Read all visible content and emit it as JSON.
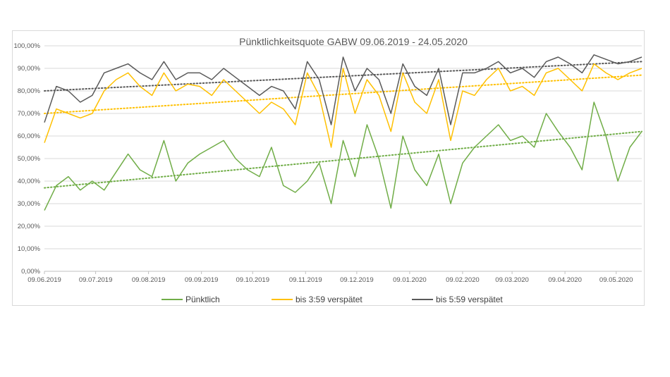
{
  "chart_data": {
    "type": "line",
    "title": "Pünktlichkeitsquote GABW 09.06.2019 - 24.05.2020",
    "xlabel": "",
    "ylabel": "",
    "ylim": [
      0,
      100
    ],
    "y_ticks": [
      "0,00%",
      "10,00%",
      "20,00%",
      "30,00%",
      "40,00%",
      "50,00%",
      "60,00%",
      "70,00%",
      "80,00%",
      "90,00%",
      "100,00%"
    ],
    "x_tick_labels": [
      "09.06.2019",
      "09.07.2019",
      "09.08.2019",
      "09.09.2019",
      "09.10.2019",
      "09.11.2019",
      "09.12.2019",
      "09.01.2020",
      "09.02.2020",
      "09.03.2020",
      "09.04.2020",
      "09.05.2020"
    ],
    "x_tick_days": [
      0,
      30,
      61,
      92,
      122,
      153,
      183,
      214,
      245,
      274,
      305,
      335
    ],
    "x_range_days": [
      0,
      350
    ],
    "grid": true,
    "legend_position": "bottom",
    "series": [
      {
        "name": "Pünktlich",
        "color": "#70ad47",
        "day_step": 7,
        "values": [
          27,
          38,
          42,
          36,
          40,
          36,
          44,
          52,
          45,
          42,
          58,
          40,
          48,
          52,
          55,
          58,
          50,
          45,
          42,
          55,
          38,
          35,
          40,
          48,
          30,
          58,
          42,
          65,
          50,
          28,
          60,
          45,
          38,
          52,
          30,
          48,
          55,
          60,
          65,
          58,
          60,
          55,
          70,
          62,
          55,
          45,
          75,
          60,
          40,
          55,
          62
        ]
      },
      {
        "name": "bis 3:59 verspätet",
        "color": "#ffc000",
        "day_step": 7,
        "values": [
          57,
          72,
          70,
          68,
          70,
          80,
          85,
          88,
          82,
          78,
          88,
          80,
          83,
          82,
          78,
          85,
          80,
          75,
          70,
          75,
          72,
          65,
          88,
          78,
          55,
          90,
          70,
          85,
          78,
          62,
          88,
          75,
          70,
          85,
          58,
          80,
          78,
          85,
          90,
          80,
          82,
          78,
          88,
          90,
          85,
          80,
          92,
          88,
          85,
          88,
          90
        ]
      },
      {
        "name": "bis 5:59 verspätet",
        "color": "#595959",
        "day_step": 7,
        "values": [
          66,
          82,
          80,
          75,
          78,
          88,
          90,
          92,
          88,
          85,
          93,
          85,
          88,
          88,
          85,
          90,
          86,
          82,
          78,
          82,
          80,
          72,
          93,
          85,
          65,
          95,
          80,
          90,
          85,
          70,
          92,
          82,
          78,
          90,
          65,
          88,
          88,
          90,
          93,
          88,
          90,
          86,
          93,
          95,
          92,
          88,
          96,
          94,
          92,
          93,
          95
        ]
      }
    ],
    "trendlines": [
      {
        "series": "Pünktlich",
        "from": 37,
        "to": 62
      },
      {
        "series": "bis 3:59 verspätet",
        "from": 70,
        "to": 87
      },
      {
        "series": "bis 5:59 verspätet",
        "from": 80,
        "to": 93
      }
    ]
  }
}
